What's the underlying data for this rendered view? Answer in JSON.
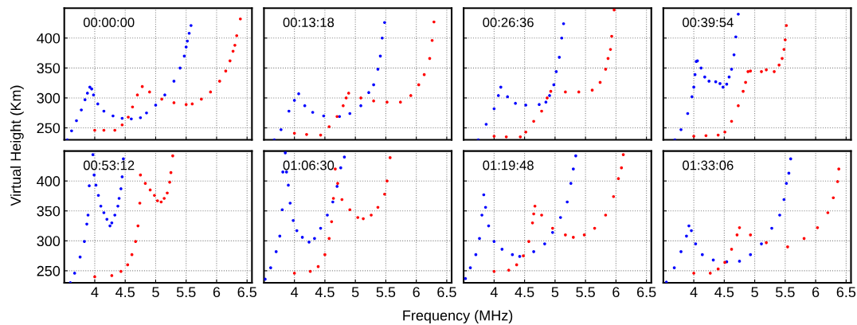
{
  "chart_data": [
    {
      "type": "scatter",
      "title": "00:00:00",
      "xlim": [
        3.5,
        6.58
      ],
      "ylim": [
        230,
        450
      ],
      "xticks": [
        4,
        4.5,
        5,
        5.5,
        6,
        6.5
      ],
      "yticks": [
        250,
        300,
        350,
        400
      ],
      "tick_labels": "y",
      "grid": true,
      "marker": "circle",
      "series": [
        {
          "color": "#0000ff",
          "x": [
            3.55,
            3.62,
            3.7,
            3.78,
            3.84,
            3.88,
            3.92,
            3.95,
            3.98,
            4.05,
            4.15,
            4.3,
            4.45,
            4.6,
            4.75,
            4.85,
            5.0,
            5.15,
            5.3,
            5.4,
            5.47,
            5.5,
            5.52,
            5.55,
            5.58
          ],
          "values": [
            230,
            245,
            262,
            280,
            297,
            308,
            318,
            315,
            305,
            290,
            278,
            270,
            266,
            265,
            267,
            275,
            288,
            305,
            328,
            350,
            370,
            385,
            395,
            408,
            421
          ]
        },
        {
          "color": "#ff0000",
          "x": [
            4.0,
            4.15,
            4.33,
            4.45,
            4.55,
            4.62,
            4.7,
            4.78,
            4.9,
            5.1,
            5.3,
            5.5,
            5.6,
            5.75,
            5.9,
            6.05,
            6.15,
            6.22,
            6.27,
            6.3,
            6.33,
            6.39
          ],
          "values": [
            246,
            246,
            246,
            255,
            268,
            285,
            305,
            319,
            310,
            298,
            292,
            289,
            290,
            298,
            310,
            328,
            345,
            362,
            378,
            388,
            404,
            432
          ]
        }
      ]
    },
    {
      "type": "scatter",
      "title": "00:13:18",
      "xlim": [
        3.5,
        6.58
      ],
      "ylim": [
        230,
        450
      ],
      "xticks": [
        4,
        4.5,
        5,
        5.5,
        6,
        6.5
      ],
      "yticks": [
        250,
        300,
        350,
        400
      ],
      "tick_labels": false,
      "grid": true,
      "marker": "circle",
      "series": [
        {
          "color": "#0000ff",
          "x": [
            3.67,
            3.78,
            3.91,
            4.0,
            4.07,
            4.17,
            4.3,
            4.48,
            4.74,
            4.91,
            5.09,
            5.22,
            5.3,
            5.37,
            5.41,
            5.44,
            5.48
          ],
          "values": [
            230,
            247,
            278,
            296,
            307,
            287,
            276,
            270,
            269,
            274,
            287,
            309,
            322,
            348,
            370,
            400,
            426
          ]
        },
        {
          "color": "#ff0000",
          "x": [
            4.0,
            4.2,
            4.43,
            4.57,
            4.7,
            4.8,
            4.85,
            4.89,
            5.09,
            5.3,
            5.52,
            5.74,
            5.91,
            6.04,
            6.13,
            6.22,
            6.26,
            6.29
          ],
          "values": [
            241,
            239,
            238,
            252,
            269,
            287,
            300,
            308,
            300,
            295,
            293,
            293,
            304,
            322,
            339,
            366,
            396,
            427
          ]
        }
      ]
    },
    {
      "type": "scatter",
      "title": "00:26:36",
      "xlim": [
        3.5,
        6.58
      ],
      "ylim": [
        230,
        450
      ],
      "xticks": [
        4,
        4.5,
        5,
        5.5,
        6,
        6.5
      ],
      "yticks": [
        250,
        300,
        350,
        400
      ],
      "tick_labels": false,
      "grid": true,
      "marker": "circle",
      "series": [
        {
          "color": "#0000ff",
          "x": [
            3.74,
            3.87,
            4.0,
            4.07,
            4.11,
            4.22,
            4.35,
            4.52,
            4.74,
            4.85,
            4.91,
            4.98,
            5.02,
            5.07,
            5.11,
            5.14
          ],
          "values": [
            230,
            256,
            282,
            304,
            318,
            302,
            291,
            288,
            289,
            293,
            304,
            322,
            344,
            368,
            400,
            424
          ]
        },
        {
          "color": "#ff0000",
          "x": [
            4.0,
            4.2,
            4.43,
            4.52,
            4.65,
            4.78,
            4.87,
            4.93,
            5.17,
            5.39,
            5.61,
            5.74,
            5.83,
            5.87,
            5.91,
            5.93,
            5.97
          ],
          "values": [
            236,
            235,
            235,
            243,
            261,
            278,
            300,
            311,
            310,
            310,
            313,
            326,
            348,
            366,
            381,
            403,
            447
          ]
        }
      ]
    },
    {
      "type": "scatter",
      "title": "00:39:54",
      "xlim": [
        3.5,
        6.58
      ],
      "ylim": [
        230,
        450
      ],
      "xticks": [
        4,
        4.5,
        5,
        5.5,
        6,
        6.5
      ],
      "yticks": [
        250,
        300,
        350,
        400
      ],
      "tick_labels": false,
      "grid": true,
      "marker": "circle",
      "series": [
        {
          "color": "#0000ff",
          "x": [
            3.69,
            3.79,
            3.9,
            3.97,
            4.0,
            4.02,
            4.04,
            4.06,
            4.12,
            4.18,
            4.25,
            4.36,
            4.43,
            4.48,
            4.54,
            4.58,
            4.62,
            4.66,
            4.69,
            4.73
          ],
          "values": [
            230,
            247,
            274,
            302,
            318,
            339,
            361,
            362,
            350,
            335,
            328,
            327,
            324,
            318,
            323,
            335,
            348,
            372,
            402,
            440
          ]
        },
        {
          "color": "#ff0000",
          "x": [
            4.0,
            4.2,
            4.4,
            4.51,
            4.62,
            4.73,
            4.81,
            4.85,
            4.89,
            4.93,
            5.11,
            5.19,
            5.32,
            5.4,
            5.45,
            5.48,
            5.5,
            5.52
          ],
          "values": [
            236,
            237,
            238,
            243,
            261,
            287,
            311,
            326,
            344,
            345,
            344,
            347,
            344,
            355,
            366,
            381,
            397,
            421
          ]
        }
      ]
    },
    {
      "type": "scatter",
      "title": "00:53:12",
      "ylabel": "Virtual Height (Km)",
      "xlim": [
        3.5,
        6.58
      ],
      "ylim": [
        230,
        450
      ],
      "xticks": [
        4,
        4.5,
        5,
        5.5,
        6,
        6.5
      ],
      "yticks": [
        250,
        300,
        350,
        400
      ],
      "grid": true,
      "marker": "circle",
      "series": [
        {
          "color": "#0000ff",
          "x": [
            3.6,
            3.67,
            3.76,
            3.83,
            3.87,
            3.89,
            3.91,
            3.97,
            3.99,
            4.02,
            4.06,
            4.1,
            4.15,
            4.2,
            4.25,
            4.28,
            4.33,
            4.38,
            4.4,
            4.43,
            4.45,
            4.47
          ],
          "values": [
            230,
            246,
            273,
            299,
            328,
            343,
            392,
            444,
            410,
            393,
            376,
            358,
            347,
            336,
            325,
            330,
            343,
            358,
            371,
            387,
            407,
            437
          ]
        },
        {
          "color": "#ff0000",
          "x": [
            4.0,
            4.28,
            4.43,
            4.54,
            4.61,
            4.67,
            4.71,
            4.74,
            4.75,
            4.83,
            4.91,
            4.98,
            5.03,
            5.09,
            5.14,
            5.19,
            5.23,
            5.25,
            5.28
          ],
          "values": [
            240,
            242,
            249,
            260,
            277,
            299,
            325,
            363,
            410,
            396,
            385,
            376,
            367,
            365,
            371,
            380,
            398,
            414,
            442
          ]
        }
      ]
    },
    {
      "type": "scatter",
      "title": "01:06:30",
      "xlabel": "Frequency (MHz)",
      "xlim": [
        3.5,
        6.58
      ],
      "ylim": [
        230,
        450
      ],
      "xticks": [
        4,
        4.5,
        5,
        5.5,
        6,
        6.5
      ],
      "yticks": [
        250,
        300,
        350,
        400
      ],
      "tick_labels": "x",
      "grid": true,
      "marker": "circle",
      "series": [
        {
          "color": "#0000ff",
          "x": [
            3.52,
            3.61,
            3.7,
            3.76,
            3.8,
            3.81,
            3.85,
            3.87,
            3.9,
            3.93,
            3.98,
            4.04,
            4.13,
            4.24,
            4.33,
            4.43,
            4.54,
            4.63,
            4.7,
            4.76,
            4.82
          ],
          "values": [
            236,
            255,
            282,
            308,
            352,
            415,
            447,
            415,
            393,
            363,
            334,
            317,
            306,
            298,
            304,
            321,
            343,
            365,
            391,
            422,
            440
          ]
        },
        {
          "color": "#ff0000",
          "x": [
            4.0,
            4.26,
            4.39,
            4.5,
            4.57,
            4.61,
            4.64,
            4.67,
            4.71,
            4.78,
            4.91,
            5.04,
            5.13,
            5.26,
            5.37,
            5.48,
            5.52,
            5.57
          ],
          "values": [
            246,
            249,
            257,
            277,
            304,
            332,
            371,
            420,
            396,
            369,
            352,
            339,
            337,
            343,
            356,
            378,
            400,
            439
          ]
        }
      ]
    },
    {
      "type": "scatter",
      "title": "01:19:48",
      "xlim": [
        3.5,
        6.58
      ],
      "ylim": [
        230,
        450
      ],
      "xticks": [
        4,
        4.5,
        5,
        5.5,
        6,
        6.5
      ],
      "yticks": [
        250,
        300,
        350,
        400
      ],
      "tick_labels": "x",
      "grid": true,
      "marker": "circle",
      "series": [
        {
          "color": "#0000ff",
          "x": [
            3.53,
            3.61,
            3.7,
            3.76,
            3.8,
            3.83,
            3.86,
            3.91,
            4.0,
            4.13,
            4.3,
            4.42,
            4.65,
            4.83,
            4.96,
            5.09,
            5.2,
            5.26,
            5.3,
            5.34
          ],
          "values": [
            237,
            255,
            277,
            304,
            343,
            377,
            356,
            325,
            299,
            286,
            277,
            274,
            282,
            295,
            314,
            339,
            365,
            396,
            420,
            442
          ]
        },
        {
          "color": "#ff0000",
          "x": [
            4.0,
            4.24,
            4.37,
            4.48,
            4.57,
            4.63,
            4.65,
            4.67,
            4.78,
            4.96,
            5.17,
            5.3,
            5.48,
            5.65,
            5.83,
            5.96,
            6.04,
            6.09,
            6.12
          ],
          "values": [
            249,
            251,
            260,
            275,
            299,
            330,
            345,
            358,
            343,
            321,
            310,
            306,
            310,
            321,
            343,
            374,
            404,
            422,
            444
          ]
        }
      ]
    },
    {
      "type": "scatter",
      "title": "01:33:06",
      "xlim": [
        3.5,
        6.58
      ],
      "ylim": [
        230,
        450
      ],
      "xticks": [
        4,
        4.5,
        5,
        5.5,
        6,
        6.5
      ],
      "yticks": [
        250,
        300,
        350,
        400
      ],
      "tick_labels": "x",
      "grid": true,
      "marker": "circle",
      "series": [
        {
          "color": "#0000ff",
          "x": [
            3.55,
            3.68,
            3.79,
            3.88,
            3.92,
            3.96,
            4.03,
            4.14,
            4.32,
            4.54,
            4.75,
            4.93,
            5.11,
            5.28,
            5.41,
            5.48,
            5.52,
            5.56,
            5.59
          ],
          "values": [
            231,
            255,
            282,
            308,
            325,
            317,
            295,
            277,
            268,
            265,
            266,
            277,
            295,
            321,
            343,
            369,
            396,
            413,
            437
          ]
        },
        {
          "color": "#ff0000",
          "x": [
            4.0,
            4.27,
            4.4,
            4.51,
            4.62,
            4.71,
            4.75,
            4.93,
            5.19,
            5.54,
            5.81,
            6.03,
            6.2,
            6.29,
            6.36,
            6.38
          ],
          "values": [
            246,
            246,
            253,
            264,
            286,
            310,
            322,
            310,
            297,
            290,
            304,
            322,
            347,
            372,
            399,
            420
          ]
        }
      ]
    }
  ]
}
